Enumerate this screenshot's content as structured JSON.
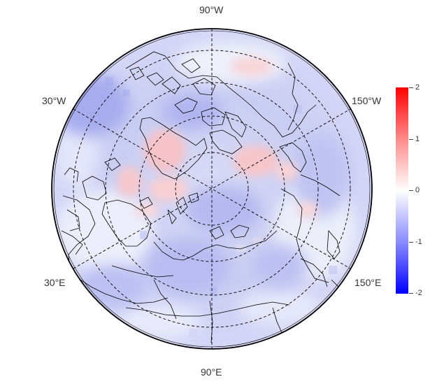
{
  "map": {
    "projection": "north-polar-stereographic",
    "graticule": "dashed",
    "longitude_labels": {
      "top": "90°W",
      "bottom": "90°E",
      "upper_left": "30°W",
      "upper_right": "150°W",
      "lower_left": "30°E",
      "lower_right": "150°E"
    }
  },
  "colorbar": {
    "ticks": [
      "2",
      "1",
      "0",
      "-1",
      "-2"
    ],
    "min": -2,
    "max": 2,
    "colors": {
      "high": "#ff0000",
      "mid": "#ffffff",
      "low": "#0000ff"
    }
  }
}
